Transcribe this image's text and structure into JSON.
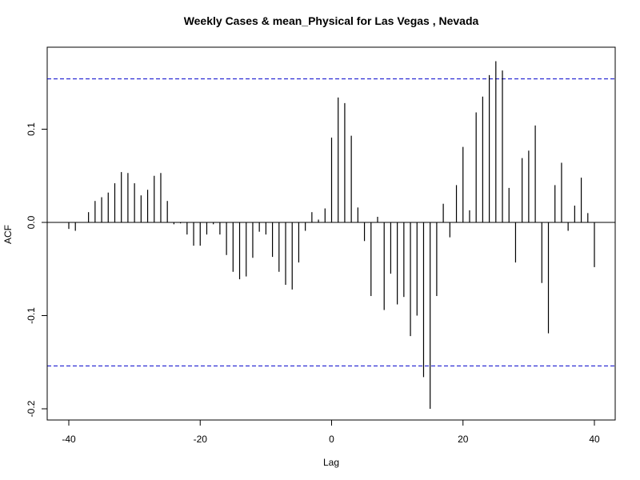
{
  "chart_data": {
    "type": "bar",
    "title": "Weekly Cases & mean_Physical for Las Vegas , Nevada",
    "xlabel": "Lag",
    "ylabel": "ACF",
    "xlim": [
      -40,
      40
    ],
    "ylim": [
      -0.2,
      0.17
    ],
    "x_ticks": [
      {
        "value": -40,
        "label": "-40"
      },
      {
        "value": -20,
        "label": "-20"
      },
      {
        "value": 0,
        "label": "0"
      },
      {
        "value": 20,
        "label": "20"
      },
      {
        "value": 40,
        "label": "40"
      }
    ],
    "y_ticks": [
      {
        "value": -0.2,
        "label": "-0.2"
      },
      {
        "value": -0.1,
        "label": "-0.1"
      },
      {
        "value": 0.0,
        "label": "0.0"
      },
      {
        "value": 0.1,
        "label": "0.1"
      }
    ],
    "confidence_bounds": [
      0.154,
      -0.154
    ],
    "grid": false,
    "colors": {
      "bars": "#000000",
      "bounds": "#0000cc",
      "zero_line": "#000000"
    },
    "x": [
      -40,
      -39,
      -38,
      -37,
      -36,
      -35,
      -34,
      -33,
      -32,
      -31,
      -30,
      -29,
      -28,
      -27,
      -26,
      -25,
      -24,
      -23,
      -22,
      -21,
      -20,
      -19,
      -18,
      -17,
      -16,
      -15,
      -14,
      -13,
      -12,
      -11,
      -10,
      -9,
      -8,
      -7,
      -6,
      -5,
      -4,
      -3,
      -2,
      -1,
      0,
      1,
      2,
      3,
      4,
      5,
      6,
      7,
      8,
      9,
      10,
      11,
      12,
      13,
      14,
      15,
      16,
      17,
      18,
      19,
      20,
      21,
      22,
      23,
      24,
      25,
      26,
      27,
      28,
      29,
      30,
      31,
      32,
      33,
      34,
      35,
      36,
      37,
      38,
      39,
      40
    ],
    "values": [
      -0.007,
      -0.009,
      0.0,
      0.011,
      0.023,
      0.027,
      0.032,
      0.042,
      0.054,
      0.053,
      0.042,
      0.029,
      0.035,
      0.05,
      0.053,
      0.023,
      -0.002,
      -0.001,
      -0.013,
      -0.025,
      -0.025,
      -0.013,
      -0.002,
      -0.013,
      -0.035,
      -0.053,
      -0.061,
      -0.058,
      -0.038,
      -0.01,
      -0.013,
      -0.037,
      -0.053,
      -0.067,
      -0.072,
      -0.043,
      -0.009,
      0.011,
      0.003,
      0.015,
      0.091,
      0.134,
      0.128,
      0.093,
      0.016,
      -0.02,
      -0.079,
      0.006,
      -0.094,
      -0.055,
      -0.088,
      -0.08,
      -0.122,
      -0.1,
      -0.166,
      -0.2,
      -0.079,
      0.02,
      -0.016,
      0.04,
      0.081,
      0.013,
      0.118,
      0.135,
      0.158,
      0.173,
      0.163,
      0.037,
      -0.043,
      0.069,
      0.077,
      0.104,
      -0.065,
      -0.119,
      0.04,
      0.064,
      -0.009,
      0.018,
      0.048,
      0.01,
      -0.048
    ]
  }
}
